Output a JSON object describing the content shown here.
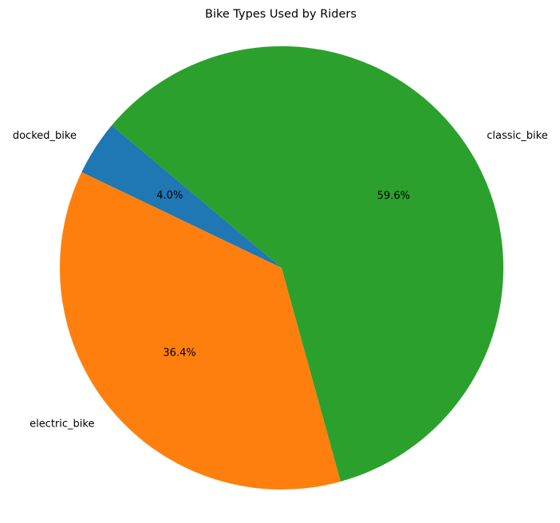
{
  "chart_data": {
    "type": "pie",
    "title": "Bike Types Used by Riders",
    "slices": [
      {
        "label": "docked_bike",
        "value": 4.0,
        "pct_label": "4.0%",
        "color": "#1f77b4"
      },
      {
        "label": "electric_bike",
        "value": 36.4,
        "pct_label": "36.4%",
        "color": "#ff7f0e"
      },
      {
        "label": "classic_bike",
        "value": 59.6,
        "pct_label": "59.6%",
        "color": "#2ca02c"
      }
    ],
    "start_angle_deg": 140,
    "direction": "counterclockwise"
  }
}
